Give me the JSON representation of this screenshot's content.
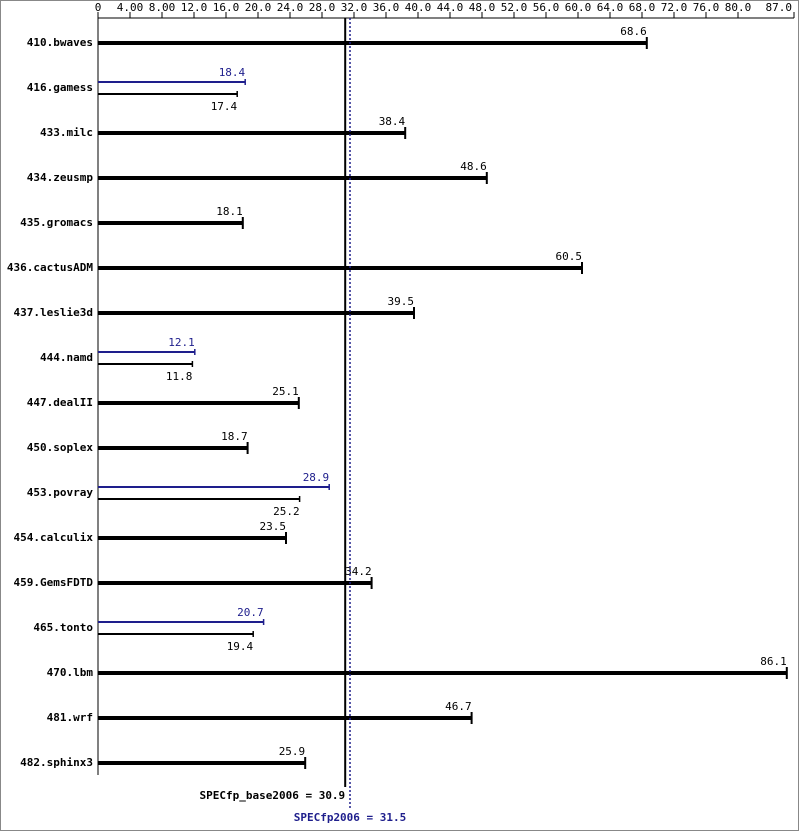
{
  "chart_data": {
    "type": "spec-bar",
    "categories": [
      "410.bwaves",
      "416.gamess",
      "433.milc",
      "434.zeusmp",
      "435.gromacs",
      "436.cactusADM",
      "437.leslie3d",
      "444.namd",
      "447.dealII",
      "450.soplex",
      "453.povray",
      "454.calculix",
      "459.GemsFDTD",
      "465.tonto",
      "470.lbm",
      "481.wrf",
      "482.sphinx3"
    ],
    "series": [
      {
        "color": "#000000",
        "values": [
          68.6,
          17.4,
          38.4,
          48.6,
          18.1,
          60.5,
          39.5,
          11.8,
          25.1,
          18.7,
          25.2,
          23.5,
          34.2,
          19.4,
          86.1,
          46.7,
          25.9
        ]
      },
      {
        "color": "#1e1e8c",
        "values": [
          null,
          18.4,
          null,
          null,
          null,
          null,
          null,
          12.1,
          null,
          null,
          28.9,
          null,
          null,
          20.7,
          null,
          null,
          null
        ]
      }
    ],
    "xlim": [
      0,
      87
    ],
    "xticks": [
      0,
      {
        "value": 4,
        "label": "4.00"
      },
      {
        "value": 8,
        "label": "8.00"
      },
      {
        "value": 12,
        "label": "12.0"
      },
      {
        "value": 16,
        "label": "16.0"
      },
      {
        "value": 20,
        "label": "20.0"
      },
      {
        "value": 24,
        "label": "24.0"
      },
      {
        "value": 28,
        "label": "28.0"
      },
      {
        "value": 32,
        "label": "32.0"
      },
      {
        "value": 36,
        "label": "36.0"
      },
      {
        "value": 40,
        "label": "40.0"
      },
      {
        "value": 44,
        "label": "44.0"
      },
      {
        "value": 48,
        "label": "48.0"
      },
      {
        "value": 52,
        "label": "52.0"
      },
      {
        "value": 56,
        "label": "56.0"
      },
      {
        "value": 60,
        "label": "60.0"
      },
      {
        "value": 64,
        "label": "64.0"
      },
      {
        "value": 68,
        "label": "68.0"
      },
      {
        "value": 72,
        "label": "72.0"
      },
      {
        "value": 76,
        "label": "76.0"
      },
      {
        "value": 80,
        "label": "80.0"
      },
      {
        "value": 87,
        "label": "87.0"
      }
    ],
    "reference_lines": [
      {
        "label": "SPECfp_base2006 = 30.9",
        "value": 30.9,
        "color": "#000000",
        "style": "solid"
      },
      {
        "label": "SPECfp2006 = 31.5",
        "value": 31.5,
        "color": "#1e1e8c",
        "style": "dotted"
      }
    ]
  }
}
